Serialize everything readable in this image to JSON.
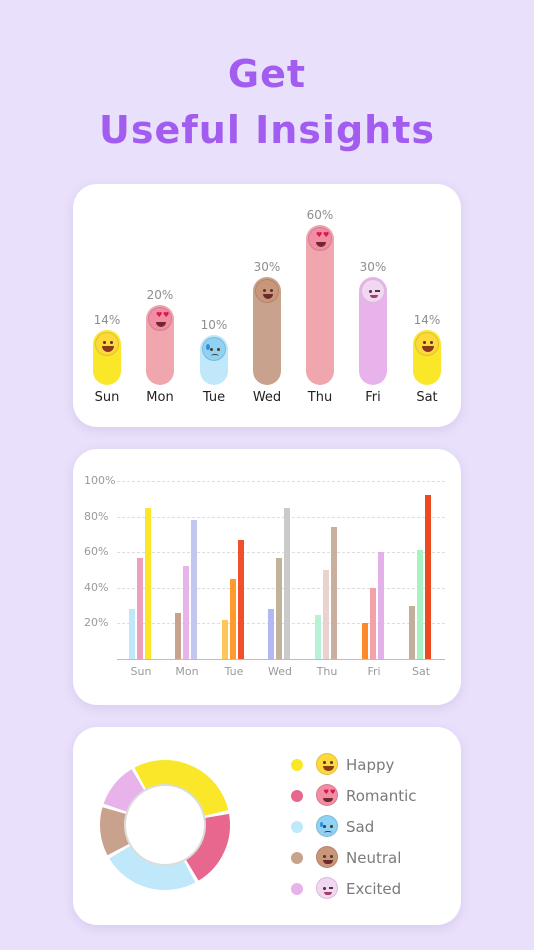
{
  "header": {
    "line1": "Get",
    "line2": "Useful Insights"
  },
  "colors": {
    "accent": "#a35cf0",
    "happy": "#fae72a",
    "romantic": "#e8678f",
    "sad": "#bfe8fa",
    "neutral": "#c9a28d",
    "excited": "#e7b3ea"
  },
  "mood_by_day": [
    {
      "day": "Sun",
      "percent": "14%",
      "mood": "happy",
      "face_icon": "happy-face-icon"
    },
    {
      "day": "Mon",
      "percent": "20%",
      "mood": "romantic",
      "face_icon": "heart-eyes-face-icon"
    },
    {
      "day": "Tue",
      "percent": "10%",
      "mood": "sad",
      "face_icon": "sad-face-icon"
    },
    {
      "day": "Wed",
      "percent": "30%",
      "mood": "neutral",
      "face_icon": "neutral-face-icon"
    },
    {
      "day": "Thu",
      "percent": "60%",
      "mood": "romantic",
      "face_icon": "heart-eyes-face-icon"
    },
    {
      "day": "Fri",
      "percent": "30%",
      "mood": "excited",
      "face_icon": "winking-face-icon"
    },
    {
      "day": "Sat",
      "percent": "14%",
      "mood": "happy",
      "face_icon": "happy-face-icon"
    }
  ],
  "chart_data": {
    "type": "bar",
    "categories": [
      "Sun",
      "Mon",
      "Tue",
      "Wed",
      "Thu",
      "Fri",
      "Sat"
    ],
    "y_ticks": [
      "100%",
      "80%",
      "60%",
      "40%",
      "20%"
    ],
    "ylim": [
      0,
      100
    ],
    "grid": true,
    "bars": [
      [
        {
          "value": 28,
          "color": "#bfe8fa"
        },
        {
          "value": 57,
          "color": "#ec9fbf"
        },
        {
          "value": 85,
          "color": "#fae72a"
        }
      ],
      [
        {
          "value": 26,
          "color": "#c9a28d"
        },
        {
          "value": 52,
          "color": "#e7b3ea"
        },
        {
          "value": 78,
          "color": "#c3c6ee"
        }
      ],
      [
        {
          "value": 22,
          "color": "#ffc65b"
        },
        {
          "value": 45,
          "color": "#ff9a2c"
        },
        {
          "value": 67,
          "color": "#f0502a"
        }
      ],
      [
        {
          "value": 28,
          "color": "#b2b8f5"
        },
        {
          "value": 57,
          "color": "#c1b29c"
        },
        {
          "value": 85,
          "color": "#cacaca"
        }
      ],
      [
        {
          "value": 25,
          "color": "#b6f2d3"
        },
        {
          "value": 50,
          "color": "#ead3cf"
        },
        {
          "value": 74,
          "color": "#c9b09e"
        }
      ],
      [
        {
          "value": 20,
          "color": "#ff8a2a"
        },
        {
          "value": 40,
          "color": "#f3a3a8"
        },
        {
          "value": 60,
          "color": "#e4b0ea"
        }
      ],
      [
        {
          "value": 30,
          "color": "#c1ae9b"
        },
        {
          "value": 61,
          "color": "#a8f2c2"
        },
        {
          "value": 92,
          "color": "#ee4a20"
        }
      ]
    ]
  },
  "donut": {
    "segments": [
      {
        "mood": "Happy",
        "value": 30,
        "color": "#fae72a"
      },
      {
        "mood": "Romantic",
        "value": 20,
        "color": "#e8678f"
      },
      {
        "mood": "Sad",
        "value": 25,
        "color": "#bfe8fa"
      },
      {
        "mood": "Neutral",
        "value": 13,
        "color": "#c9a28d"
      },
      {
        "mood": "Excited",
        "value": 12,
        "color": "#e7b3ea"
      }
    ]
  },
  "legend": [
    {
      "label": "Happy",
      "color": "#fae72a",
      "icon": "happy-face-icon"
    },
    {
      "label": "Romantic",
      "color": "#e8678f",
      "icon": "heart-eyes-face-icon"
    },
    {
      "label": "Sad",
      "color": "#bfe8fa",
      "icon": "sad-face-icon"
    },
    {
      "label": "Neutral",
      "color": "#c9a28d",
      "icon": "neutral-face-icon"
    },
    {
      "label": "Excited",
      "color": "#e7b3ea",
      "icon": "winking-face-icon"
    }
  ]
}
